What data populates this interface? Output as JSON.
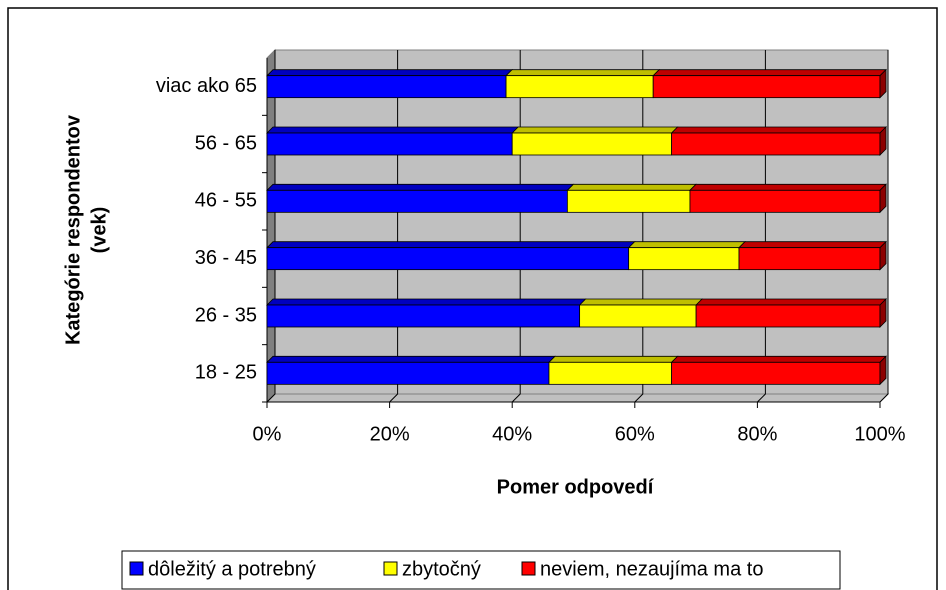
{
  "chart_data": {
    "type": "bar",
    "orientation": "horizontal",
    "stacked": "percent",
    "xlabel": "Pomer odpovedí",
    "ylabel": [
      "Kategórie respondentov",
      "(vek)"
    ],
    "categories": [
      "18 - 25",
      "26 - 35",
      "36 - 45",
      "46 - 55",
      "56 - 65",
      "viac ako 65"
    ],
    "series": [
      {
        "name": "dôležitý a potrebný",
        "color": "#0000ff",
        "values": [
          46,
          51,
          59,
          49,
          40,
          39
        ]
      },
      {
        "name": "zbytočný",
        "color": "#ffff00",
        "values": [
          20,
          19,
          18,
          20,
          26,
          24
        ]
      },
      {
        "name": "neviem, nezaujíma ma to",
        "color": "#ff0000",
        "values": [
          34,
          30,
          23,
          31,
          34,
          37
        ]
      }
    ],
    "xlim": [
      0,
      100
    ],
    "xticks": [
      {
        "value": 0,
        "label": "0%"
      },
      {
        "value": 20,
        "label": "20%"
      },
      {
        "value": 40,
        "label": "40%"
      },
      {
        "value": 60,
        "label": "60%"
      },
      {
        "value": 80,
        "label": "80%"
      },
      {
        "value": 100,
        "label": "100%"
      }
    ],
    "grid": true,
    "legend": "bottom"
  }
}
